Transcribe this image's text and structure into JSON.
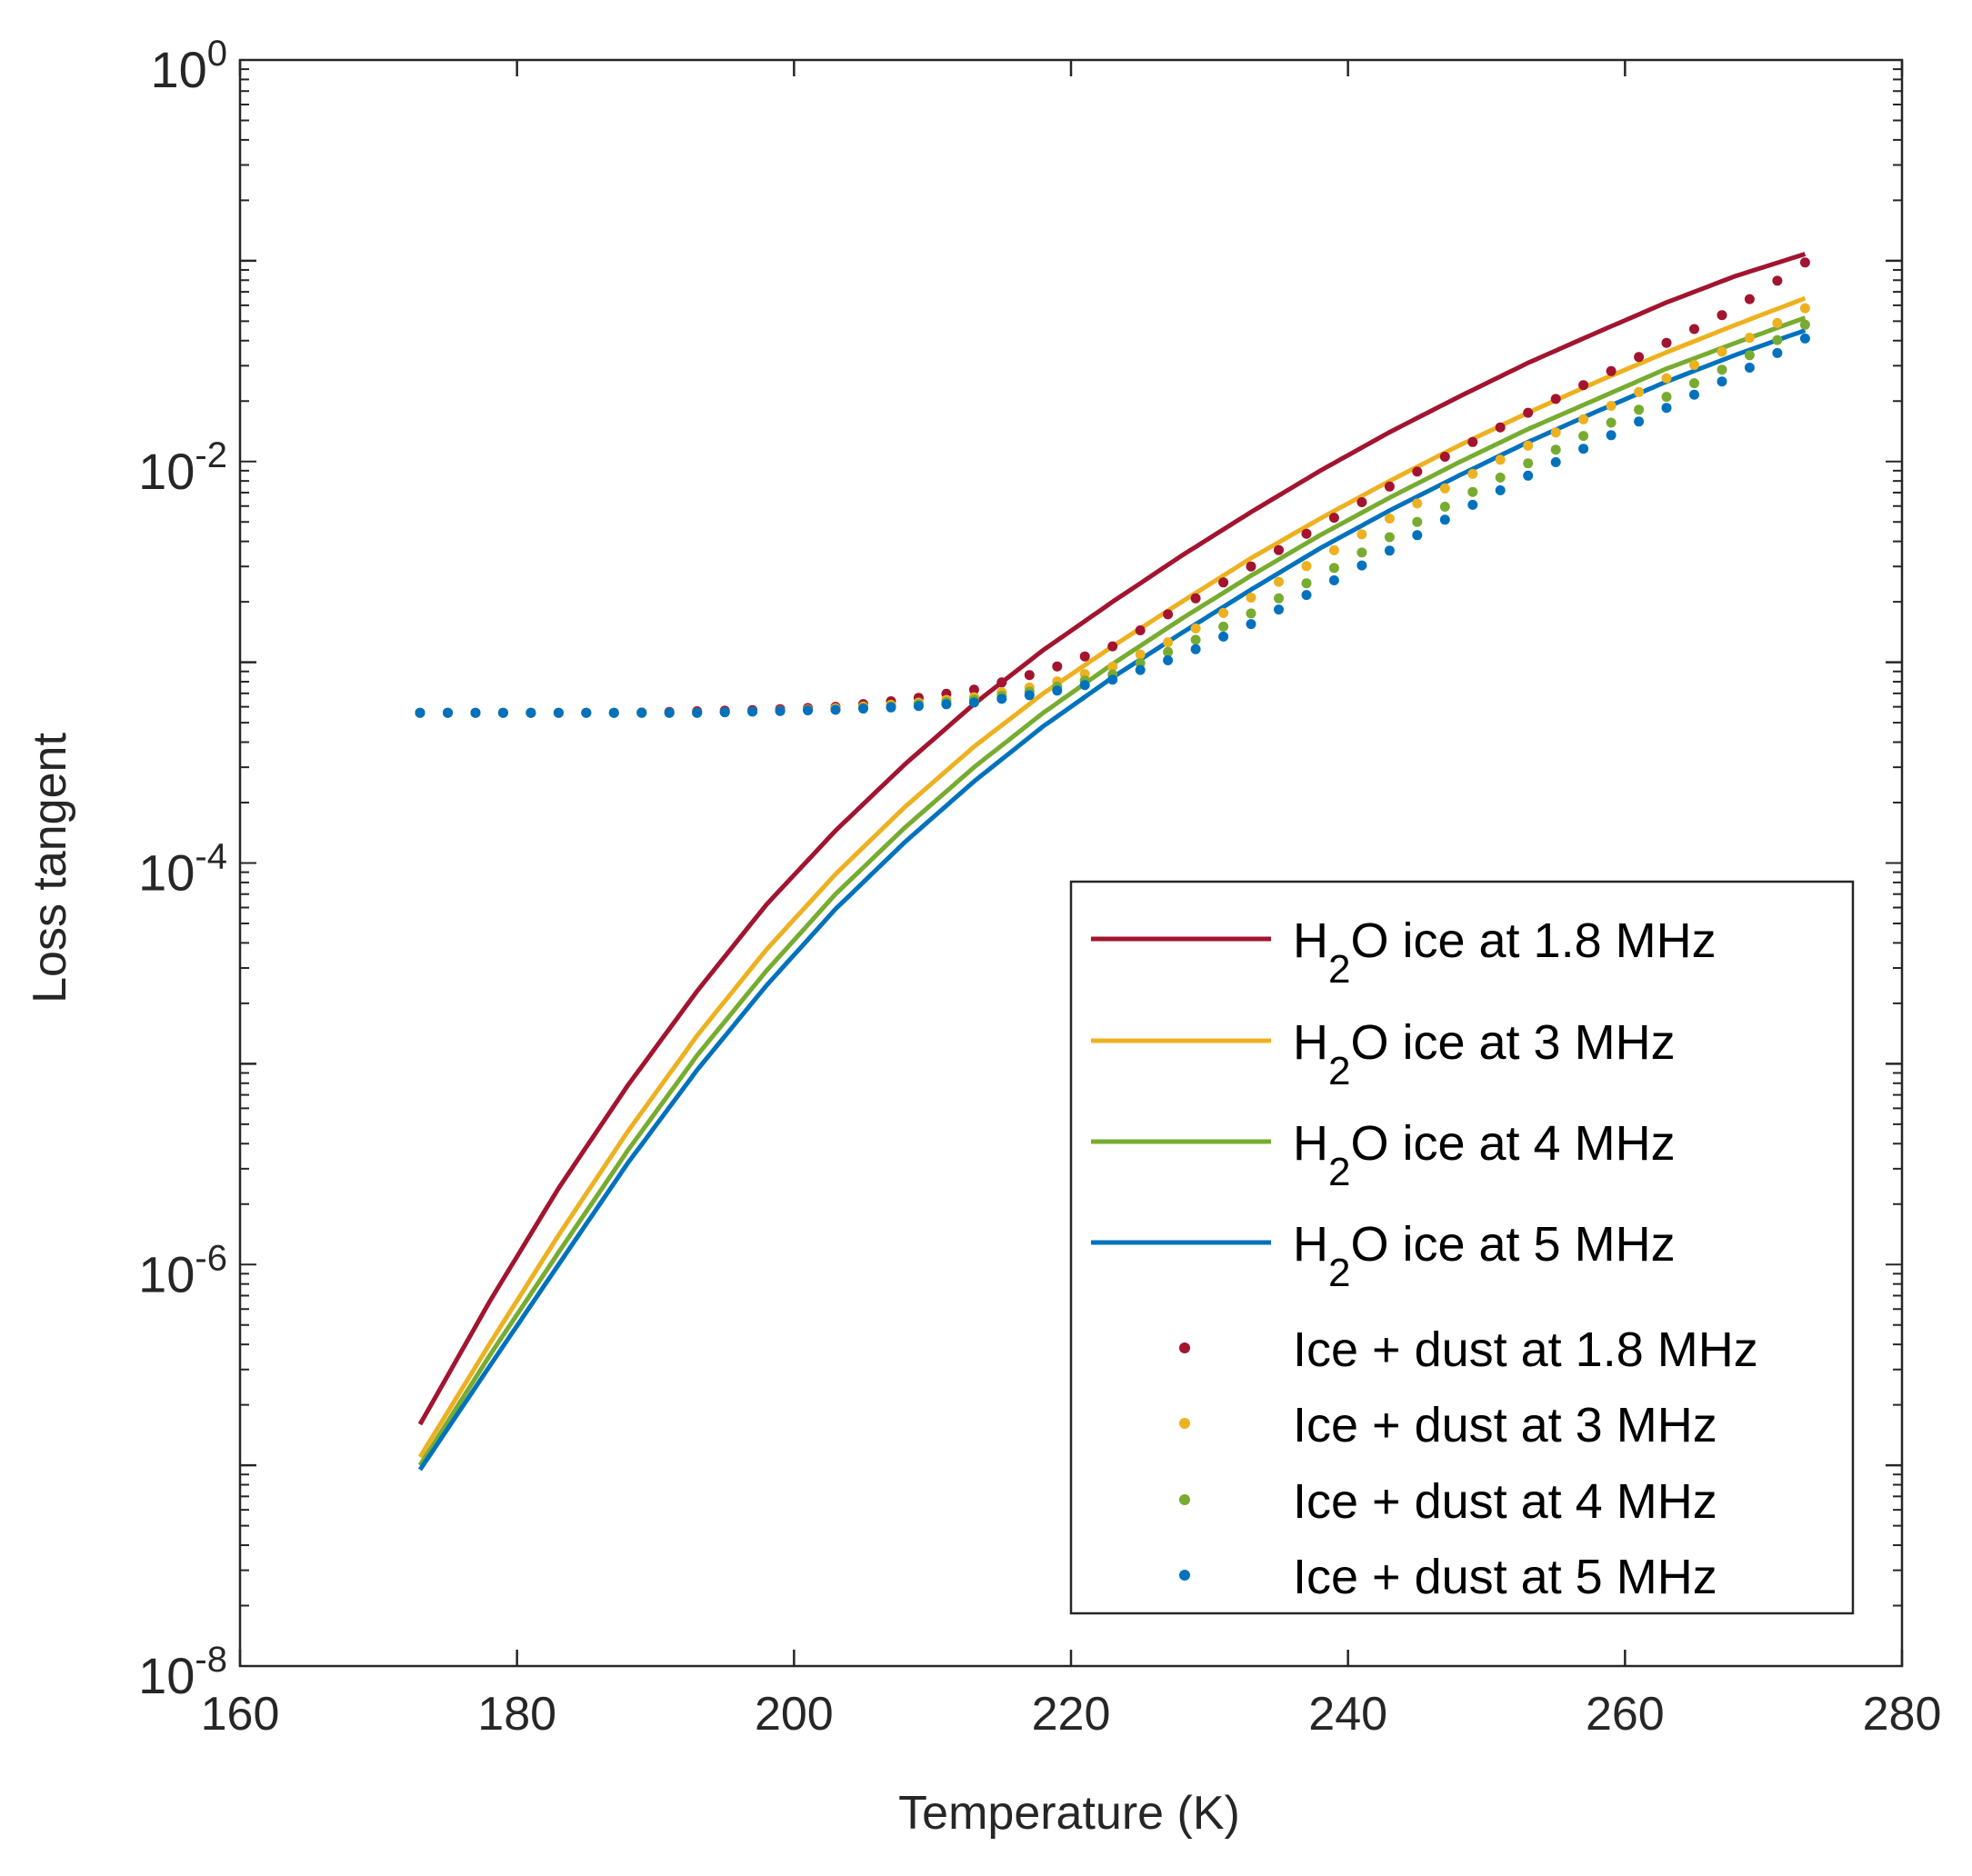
{
  "chart_data": {
    "type": "line",
    "xlabel": "Temperature (K)",
    "ylabel": "Loss tangent",
    "xlim": [
      160,
      280
    ],
    "ylim": [
      1e-08,
      1
    ],
    "yscale": "log",
    "grid": false,
    "legend_position": "bottom-right",
    "x_ticks": [
      160,
      180,
      200,
      220,
      240,
      260,
      280
    ],
    "x_tick_labels": [
      "160",
      "180",
      "200",
      "220",
      "240",
      "260",
      "280"
    ],
    "y_ticks": [
      {
        "value": 1,
        "base": "10",
        "exp": "0"
      },
      {
        "value": 0.01,
        "base": "10",
        "exp": "-2"
      },
      {
        "value": 0.0001,
        "base": "10",
        "exp": "-4"
      },
      {
        "value": 1e-06,
        "base": "10",
        "exp": "-6"
      },
      {
        "value": 1e-08,
        "base": "10",
        "exp": "-8"
      }
    ],
    "x": [
      173,
      178,
      183,
      188,
      193,
      198,
      203,
      208,
      213,
      218,
      223,
      228,
      233,
      238,
      243,
      248,
      253,
      258,
      263,
      268,
      273
    ],
    "series": [
      {
        "name": "H2O ice at 1.8 MHz",
        "legend_main": "H",
        "legend_sub": "2",
        "legend_rest": "O ice at 1.8 MHz",
        "style": "line",
        "color": "#A2142F",
        "values": [
          1.6e-07,
          6.5e-07,
          2.4e-06,
          7.8e-06,
          2.3e-05,
          6.2e-05,
          0.000145,
          0.00031,
          0.00062,
          0.00115,
          0.002,
          0.0034,
          0.0056,
          0.009,
          0.014,
          0.021,
          0.031,
          0.044,
          0.062,
          0.084,
          0.108
        ]
      },
      {
        "name": "H2O ice at 3 MHz",
        "legend_main": "H",
        "legend_sub": "2",
        "legend_rest": "O ice at 3 MHz",
        "style": "line",
        "color": "#EDB120",
        "values": [
          1.1e-07,
          4e-07,
          1.4e-06,
          4.6e-06,
          1.38e-05,
          3.7e-05,
          8.8e-05,
          0.00019,
          0.00038,
          0.0007,
          0.0012,
          0.002,
          0.0033,
          0.0052,
          0.008,
          0.012,
          0.0175,
          0.025,
          0.035,
          0.048,
          0.065
        ]
      },
      {
        "name": "H2O ice at 4 MHz",
        "legend_main": "H",
        "legend_sub": "2",
        "legend_rest": "O ice at 4 MHz",
        "style": "line",
        "color": "#77AC30",
        "values": [
          1e-07,
          3.5e-07,
          1.15e-06,
          3.7e-06,
          1.1e-05,
          2.9e-05,
          7e-05,
          0.00015,
          0.0003,
          0.00056,
          0.00098,
          0.00165,
          0.0027,
          0.0043,
          0.0066,
          0.0099,
          0.0145,
          0.0205,
          0.029,
          0.039,
          0.052
        ]
      },
      {
        "name": "H2O ice at 5 MHz",
        "legend_main": "H",
        "legend_sub": "2",
        "legend_rest": "O ice at 5 MHz",
        "style": "line",
        "color": "#0072BD",
        "values": [
          9.5e-08,
          3.1e-07,
          1e-06,
          3.2e-06,
          9.3e-06,
          2.45e-05,
          5.9e-05,
          0.000127,
          0.000255,
          0.00048,
          0.00084,
          0.0014,
          0.0023,
          0.0037,
          0.0057,
          0.0085,
          0.0125,
          0.0178,
          0.025,
          0.034,
          0.045
        ]
      },
      {
        "name": "Ice + dust at 1.8 MHz",
        "legend_main": "Ice + dust at 1.8 MHz",
        "legend_sub": "",
        "legend_rest": "",
        "style": "dots",
        "color": "#A2142F",
        "values": [
          0.00056,
          0.00056,
          0.00056,
          0.00056,
          0.00057,
          0.00058,
          0.0006,
          0.00065,
          0.00073,
          0.0009,
          0.0012,
          0.0019,
          0.003,
          0.0048,
          0.0075,
          0.0115,
          0.0175,
          0.026,
          0.039,
          0.058,
          0.098
        ]
      },
      {
        "name": "Ice + dust at 3 MHz",
        "legend_main": "Ice + dust at 3 MHz",
        "legend_sub": "",
        "legend_rest": "",
        "style": "dots",
        "color": "#EDB120",
        "values": [
          0.00056,
          0.00056,
          0.00056,
          0.00056,
          0.00056,
          0.00057,
          0.00059,
          0.00062,
          0.00067,
          0.00077,
          0.00095,
          0.00135,
          0.0021,
          0.0033,
          0.0052,
          0.008,
          0.012,
          0.0175,
          0.026,
          0.038,
          0.058
        ]
      },
      {
        "name": "Ice + dust at 4 MHz",
        "legend_main": "Ice + dust at 4 MHz",
        "legend_sub": "",
        "legend_rest": "",
        "style": "dots",
        "color": "#77AC30",
        "values": [
          0.00056,
          0.00056,
          0.00056,
          0.00056,
          0.00056,
          0.00057,
          0.00058,
          0.00061,
          0.00065,
          0.00073,
          0.00087,
          0.0012,
          0.00175,
          0.0027,
          0.0042,
          0.0065,
          0.0098,
          0.0145,
          0.021,
          0.031,
          0.048
        ]
      },
      {
        "name": "Ice + dust at 5 MHz",
        "legend_main": "Ice + dust at 5 MHz",
        "legend_sub": "",
        "legend_rest": "",
        "style": "dots",
        "color": "#0072BD",
        "values": [
          0.00056,
          0.00056,
          0.00056,
          0.00056,
          0.00056,
          0.00057,
          0.00058,
          0.0006,
          0.00063,
          0.0007,
          0.00082,
          0.00108,
          0.00155,
          0.00235,
          0.0036,
          0.0056,
          0.0085,
          0.0125,
          0.0185,
          0.027,
          0.041
        ]
      }
    ],
    "dot_x": [
      173,
      175,
      177,
      179,
      181,
      183,
      185,
      187,
      189,
      191,
      193,
      195,
      197,
      199,
      201,
      203,
      205,
      207,
      209,
      211,
      213,
      215,
      217,
      219,
      221,
      223,
      225,
      227,
      229,
      231,
      233,
      235,
      237,
      239,
      241,
      243,
      245,
      247,
      249,
      251,
      253,
      255,
      257,
      259,
      261,
      263,
      265,
      267,
      269,
      271,
      273
    ]
  }
}
